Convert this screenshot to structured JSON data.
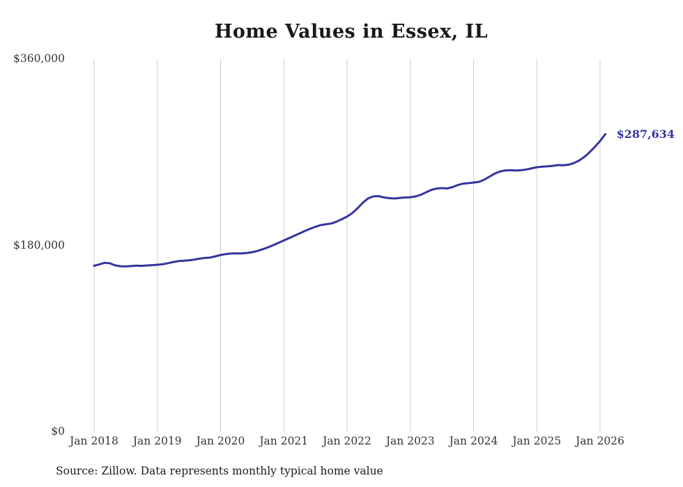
{
  "page": {
    "source_note": "Source: Zillow. Data represents monthly typical home value"
  },
  "chart_data": {
    "type": "line",
    "title": "Home Values in Essex, IL",
    "xlabel": "",
    "ylabel": "",
    "x_start": "2018-01",
    "x_end": "2026-02",
    "x_interval": "monthly",
    "xtick_labels": [
      "Jan 2018",
      "Jan 2019",
      "Jan 2020",
      "Jan 2021",
      "Jan 2022",
      "Jan 2023",
      "Jan 2024",
      "Jan 2025",
      "Jan 2026"
    ],
    "ytick_labels": [
      {
        "value": 0,
        "label": "$0"
      },
      {
        "value": 180000,
        "label": "$180,000"
      },
      {
        "value": 360000,
        "label": "$360,000"
      }
    ],
    "ylim": [
      0,
      360000
    ],
    "grid": "vertical-only",
    "legend": "none",
    "line_color": "#34349e",
    "grid_color": "#cccccc",
    "final_value": 287634,
    "final_value_label": "$287,634",
    "series": [
      {
        "name": "Typical home value",
        "values": [
          160500,
          161900,
          163400,
          162900,
          160900,
          160100,
          159900,
          160200,
          160700,
          160400,
          160800,
          161100,
          161500,
          162000,
          163000,
          164100,
          165000,
          165400,
          165800,
          166500,
          167400,
          168000,
          168400,
          169600,
          170900,
          171800,
          172300,
          172500,
          172400,
          172900,
          173600,
          174800,
          176500,
          178300,
          180400,
          182700,
          185000,
          187200,
          189500,
          191800,
          194100,
          196300,
          198200,
          199800,
          200600,
          201300,
          203100,
          205500,
          208000,
          211500,
          216100,
          221500,
          225600,
          227500,
          227800,
          226500,
          225800,
          225500,
          226000,
          226400,
          226700,
          227500,
          229100,
          231500,
          233800,
          235100,
          235500,
          235200,
          236500,
          238500,
          239800,
          240300,
          240900,
          241500,
          243600,
          246500,
          249500,
          251500,
          252600,
          252800,
          252500,
          252800,
          253500,
          254600,
          255700,
          256200,
          256600,
          257000,
          257800,
          257500,
          258100,
          259600,
          262100,
          265500,
          270100,
          275200,
          281000,
          287634
        ]
      }
    ]
  }
}
